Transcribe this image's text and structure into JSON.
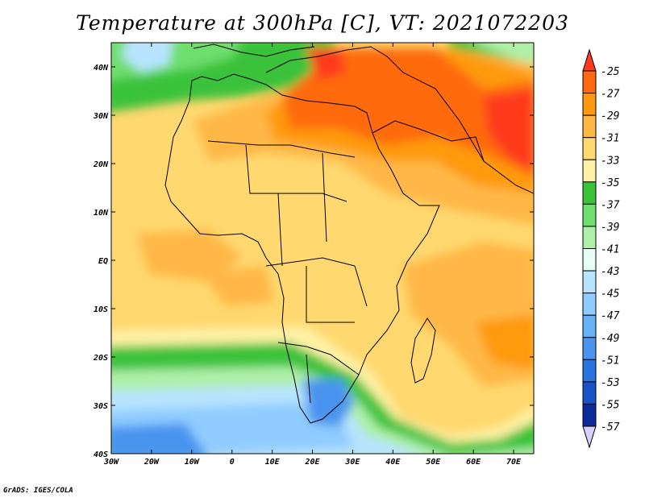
{
  "title": "Temperature at 300hPa [C], VT: 2021072203",
  "credit": "GrADS: IGES/COLA",
  "map": {
    "lon_labels": [
      "30W",
      "20W",
      "10W",
      "0",
      "10E",
      "20E",
      "30E",
      "40E",
      "50E",
      "60E",
      "70E"
    ],
    "lat_labels": [
      "40N",
      "30N",
      "20N",
      "10N",
      "EQ",
      "10S",
      "20S",
      "30S",
      "40S"
    ],
    "lon_range": [
      -30,
      75
    ],
    "lat_range": [
      -40,
      45
    ]
  },
  "colorbar": {
    "labels": [
      "-25",
      "-27",
      "-29",
      "-31",
      "-33",
      "-35",
      "-37",
      "-39",
      "-41",
      "-43",
      "-45",
      "-47",
      "-49",
      "-51",
      "-53",
      "-55",
      "-57"
    ],
    "colors": [
      "#ff3a1a",
      "#ff6a10",
      "#ff9a10",
      "#ffb846",
      "#ffd870",
      "#fff2a6",
      "#3ac23a",
      "#6ede6e",
      "#aef0a8",
      "#e6fff6",
      "#b8e4ff",
      "#90ccff",
      "#6ab2f6",
      "#4a94ee",
      "#2a74e2",
      "#1a52c8",
      "#0c2a9a",
      "#0c1480"
    ]
  }
}
